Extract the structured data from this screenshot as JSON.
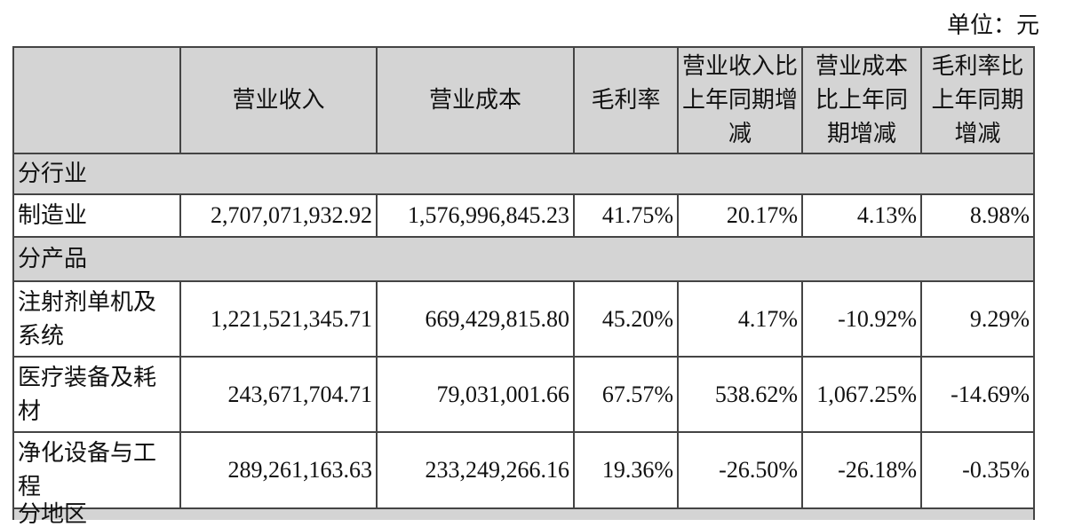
{
  "unit_label": "单位：元",
  "headers": [
    "",
    "营业收入",
    "营业成本",
    "毛利率",
    "营业收入比上年同期增减",
    "营业成本比上年同期增减",
    "毛利率比上年同期增减"
  ],
  "section_industry": "分行业",
  "industry_rows": [
    {
      "name": "制造业",
      "revenue": "2,707,071,932.92",
      "cost": "1,576,996,845.23",
      "margin": "41.75%",
      "rev_change": "20.17%",
      "cost_change": "4.13%",
      "margin_change": "8.98%"
    }
  ],
  "section_product": "分产品",
  "product_rows": [
    {
      "name": "注射剂单机及系统",
      "revenue": "1,221,521,345.71",
      "cost": "669,429,815.80",
      "margin": "45.20%",
      "rev_change": "4.17%",
      "cost_change": "-10.92%",
      "margin_change": "9.29%"
    },
    {
      "name": "医疗装备及耗材",
      "revenue": "243,671,704.71",
      "cost": "79,031,001.66",
      "margin": "67.57%",
      "rev_change": "538.62%",
      "cost_change": "1,067.25%",
      "margin_change": "-14.69%"
    },
    {
      "name": "净化设备与工程",
      "revenue": "289,261,163.63",
      "cost": "233,249,266.16",
      "margin": "19.36%",
      "rev_change": "-26.50%",
      "cost_change": "-26.18%",
      "margin_change": "-0.35%"
    }
  ],
  "section_region": "分地区"
}
